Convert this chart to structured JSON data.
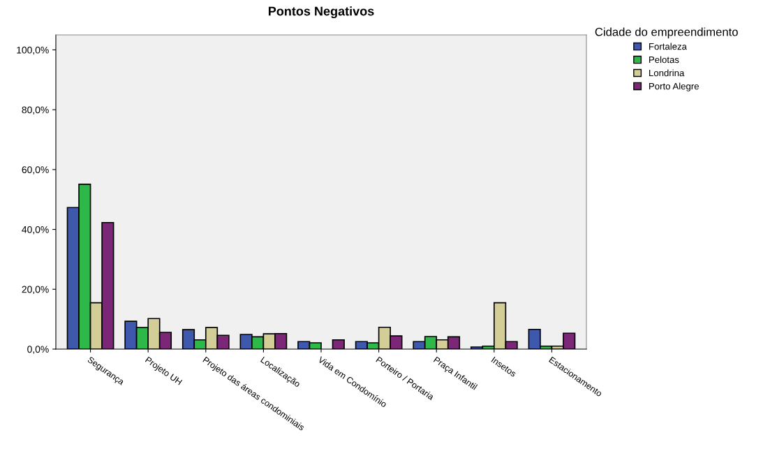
{
  "chart_data": {
    "type": "bar",
    "title": "Pontos Negativos",
    "legend_title": "Cidade do empreendimento",
    "legend": "top right",
    "categories": [
      "Segurança",
      "Projeto UH",
      "Projeto das áreas condominiais",
      "Localização",
      "Vida em Condomínio",
      "Porteiro / Portaria",
      "Praça Infantil",
      "Insetos",
      "Estacionamento"
    ],
    "series": [
      {
        "name": "Fortaleza",
        "color": "#3e58ac",
        "values": [
          47.3,
          9.3,
          6.5,
          4.9,
          2.5,
          2.5,
          2.5,
          0.7,
          6.6
        ]
      },
      {
        "name": "Pelotas",
        "color": "#2fb84a",
        "values": [
          55.1,
          7.2,
          3.1,
          4.1,
          2.1,
          2.1,
          4.2,
          1.0,
          1.0
        ]
      },
      {
        "name": "Londrina",
        "color": "#d3ce98",
        "values": [
          15.5,
          10.2,
          7.2,
          5.1,
          0,
          7.3,
          3.1,
          15.5,
          1.0
        ]
      },
      {
        "name": "Porto Alegre",
        "color": "#7b2677",
        "values": [
          42.3,
          5.6,
          4.6,
          5.2,
          3.1,
          4.4,
          4.1,
          2.5,
          5.3
        ]
      }
    ],
    "ylim": [
      0,
      105
    ],
    "yticks": [
      {
        "value": 0,
        "label": "0,0%"
      },
      {
        "value": 20,
        "label": "20,0%"
      },
      {
        "value": 40,
        "label": "40,0%"
      },
      {
        "value": 60,
        "label": "60,0%"
      },
      {
        "value": 80,
        "label": "80,0%"
      },
      {
        "value": 100,
        "label": "100,0%"
      }
    ],
    "grid": false
  }
}
